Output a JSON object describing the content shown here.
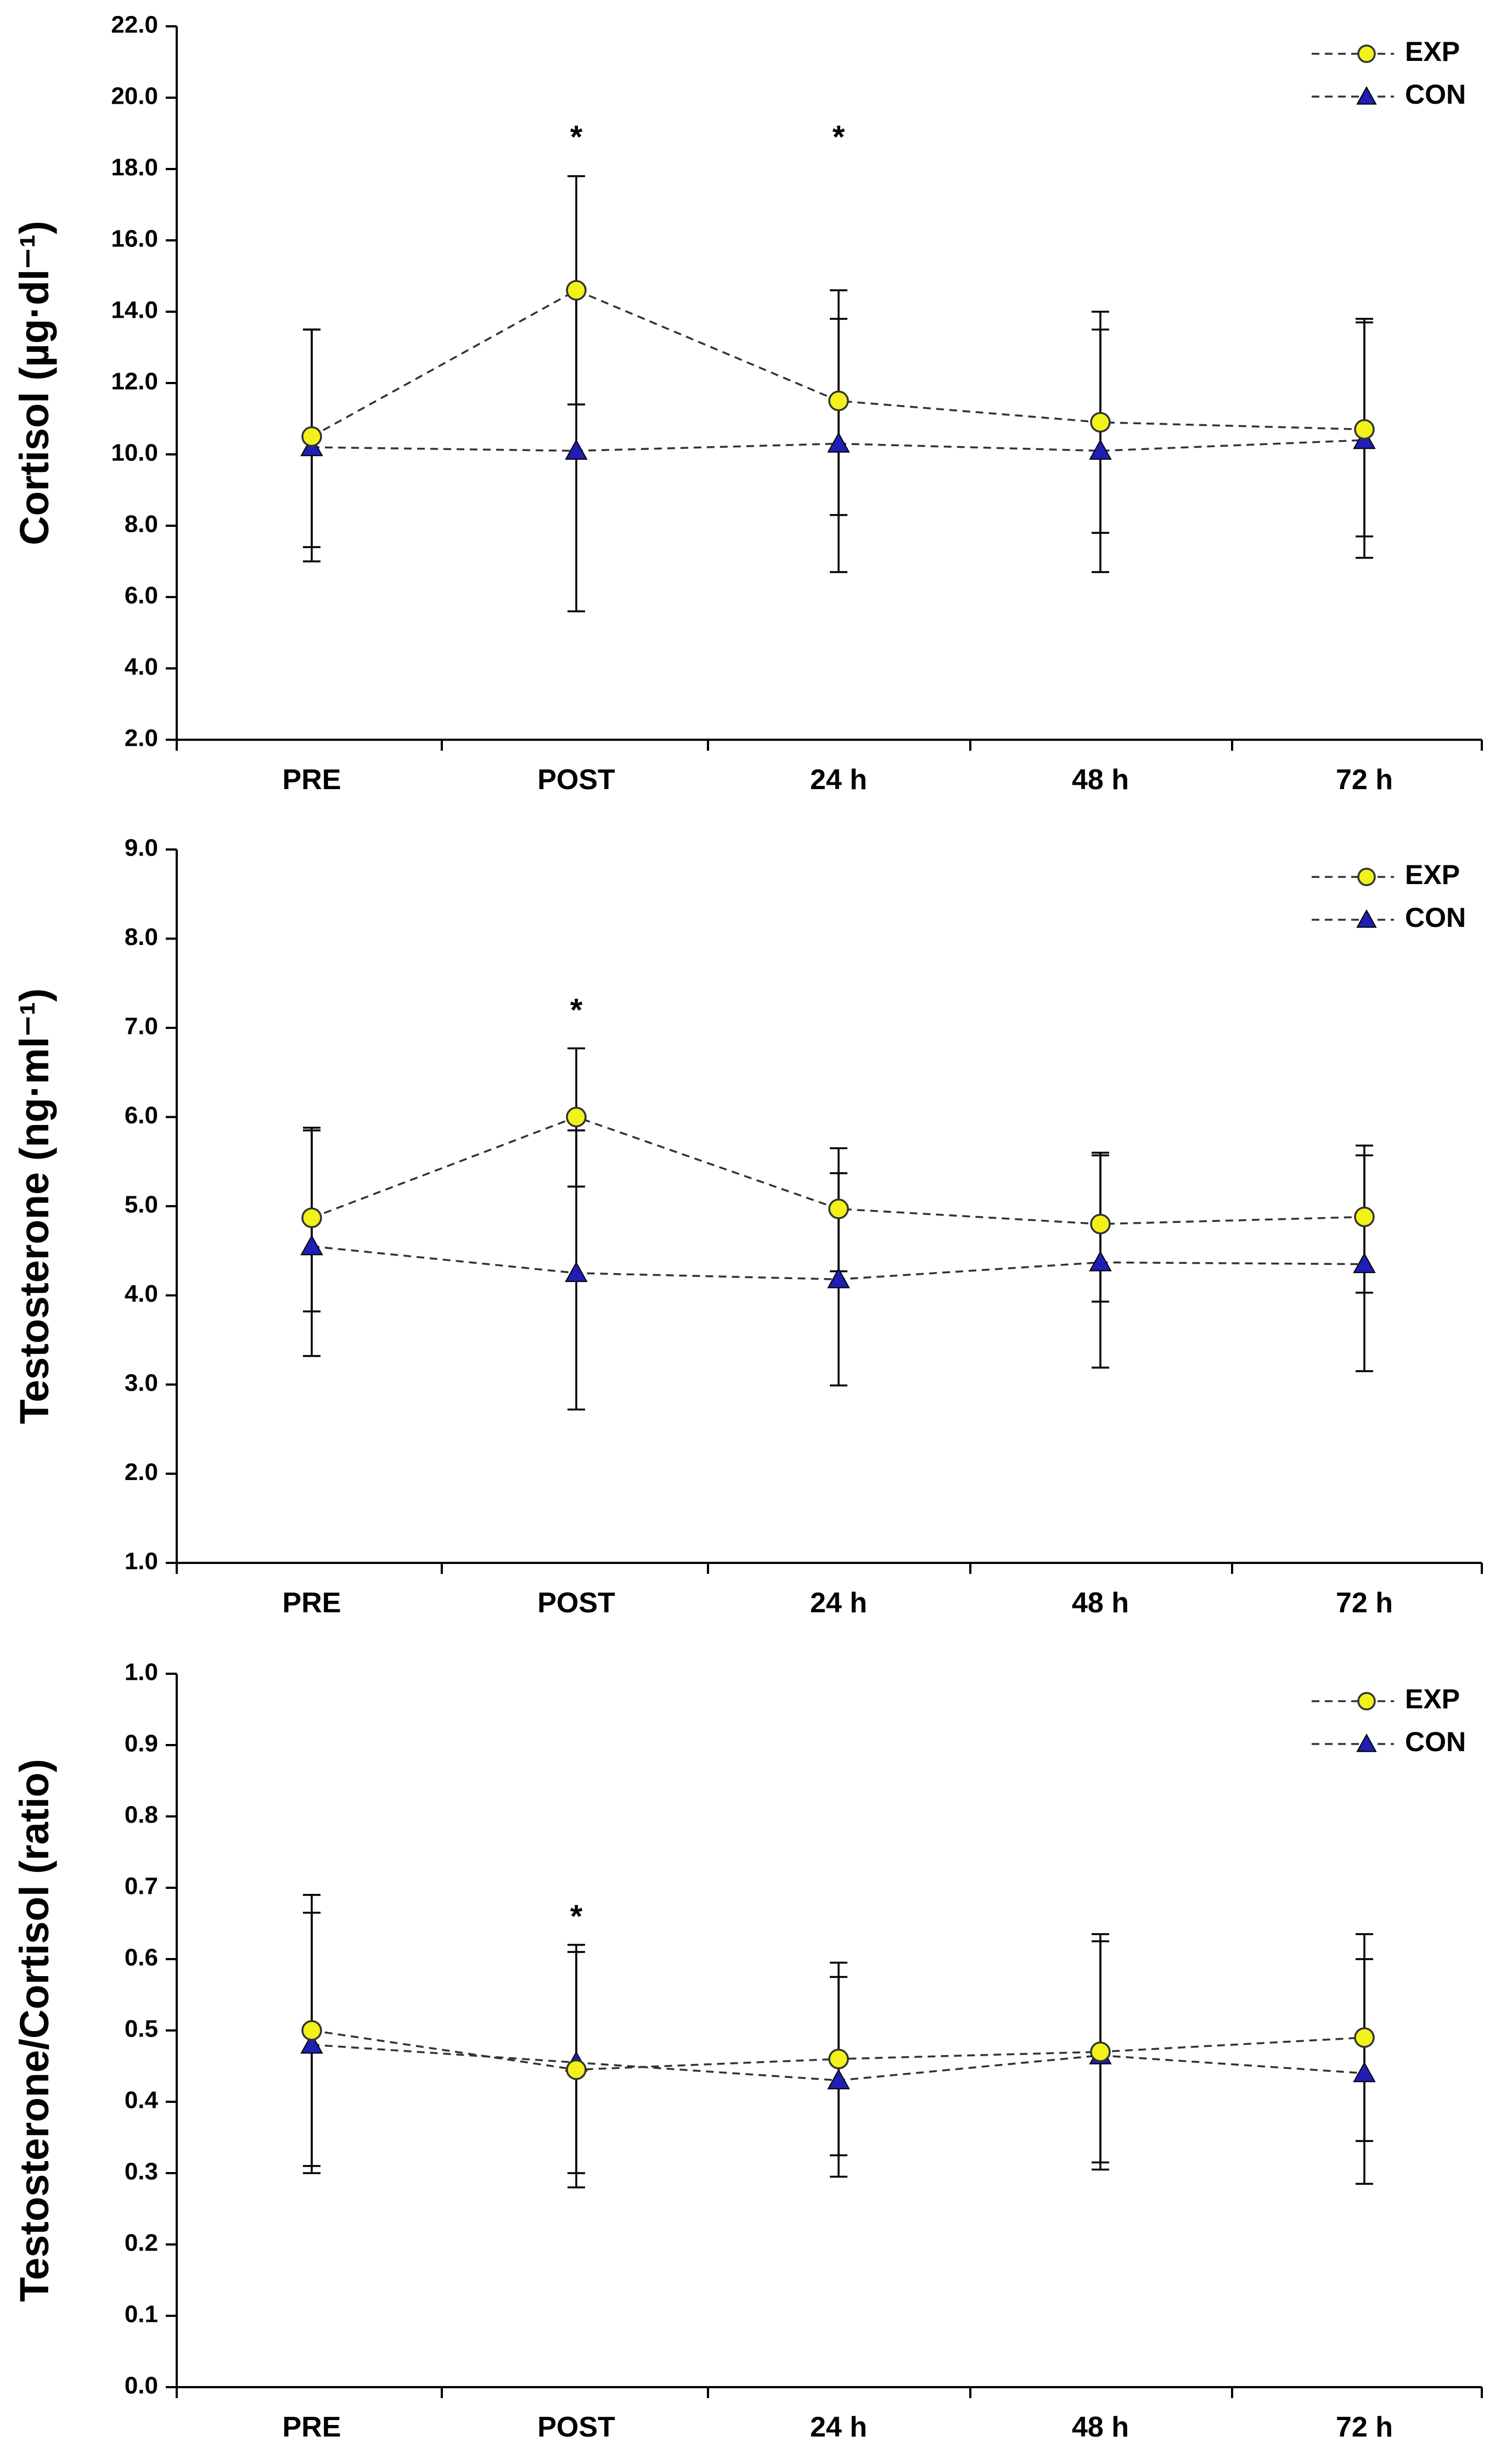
{
  "legend": [
    {
      "key": "exp",
      "label": "EXP",
      "marker": "circle",
      "color": "#f2f21a"
    },
    {
      "key": "con",
      "label": "CON",
      "marker": "triangle",
      "color": "#1f1fb3"
    }
  ],
  "chart_data": [
    {
      "type": "line",
      "categories": [
        "PRE",
        "POST",
        "24 h",
        "48 h",
        "72 h"
      ],
      "ylabel": "Cortisol (µg·dl⁻¹)",
      "ylim": [
        2.0,
        22.0
      ],
      "yticks": [
        2.0,
        4.0,
        6.0,
        8.0,
        10.0,
        12.0,
        14.0,
        16.0,
        18.0,
        20.0,
        22.0
      ],
      "ytick_labels": [
        "2.0",
        "4.0",
        "6.0",
        "8.0",
        "10.0",
        "12.0",
        "14.0",
        "16.0",
        "18.0",
        "20.0",
        "22.0"
      ],
      "legend_position": "top-right",
      "significance": [
        {
          "category": "POST",
          "label": "*",
          "value": 18.9
        },
        {
          "category": "24 h",
          "label": "*",
          "value": 18.9
        }
      ],
      "series": [
        {
          "name": "EXP",
          "values": [
            10.5,
            14.6,
            11.5,
            10.9,
            10.7
          ],
          "err_low": [
            7.4,
            11.4,
            8.3,
            7.8,
            7.7
          ],
          "err_high": [
            13.5,
            17.8,
            14.6,
            14.0,
            13.7
          ]
        },
        {
          "name": "CON",
          "values": [
            10.2,
            10.1,
            10.3,
            10.1,
            10.4
          ],
          "err_low": [
            7.0,
            5.6,
            6.7,
            6.7,
            7.1
          ],
          "err_high": [
            13.5,
            14.6,
            13.8,
            13.5,
            13.8
          ]
        }
      ]
    },
    {
      "type": "line",
      "categories": [
        "PRE",
        "POST",
        "24 h",
        "48 h",
        "72 h"
      ],
      "ylabel": "Testosterone (ng·ml⁻¹)",
      "ylim": [
        1.0,
        9.0
      ],
      "yticks": [
        1.0,
        2.0,
        3.0,
        4.0,
        5.0,
        6.0,
        7.0,
        8.0,
        9.0
      ],
      "ytick_labels": [
        "1.0",
        "2.0",
        "3.0",
        "4.0",
        "5.0",
        "6.0",
        "7.0",
        "8.0",
        "9.0"
      ],
      "legend_position": "top-right",
      "significance": [
        {
          "category": "POST",
          "label": "*",
          "value": 7.2
        }
      ],
      "series": [
        {
          "name": "EXP",
          "values": [
            4.87,
            6.0,
            4.97,
            4.8,
            4.88
          ],
          "err_low": [
            3.82,
            5.22,
            4.27,
            3.93,
            4.03
          ],
          "err_high": [
            5.88,
            6.77,
            5.65,
            5.6,
            5.68
          ]
        },
        {
          "name": "CON",
          "values": [
            4.55,
            4.25,
            4.18,
            4.37,
            4.35
          ],
          "err_low": [
            3.32,
            2.72,
            2.99,
            3.19,
            3.15
          ],
          "err_high": [
            5.85,
            5.85,
            5.37,
            5.57,
            5.57
          ]
        }
      ]
    },
    {
      "type": "line",
      "categories": [
        "PRE",
        "POST",
        "24 h",
        "48 h",
        "72 h"
      ],
      "ylabel": "Testosterone/Cortisol (ratio)",
      "ylim": [
        0.0,
        1.0
      ],
      "yticks": [
        0.0,
        0.1,
        0.2,
        0.3,
        0.4,
        0.5,
        0.6,
        0.7,
        0.8,
        0.9,
        1.0
      ],
      "ytick_labels": [
        "0.0",
        "0.1",
        "0.2",
        "0.3",
        "0.4",
        "0.5",
        "0.6",
        "0.7",
        "0.8",
        "0.9",
        "1.0"
      ],
      "legend_position": "top-right",
      "significance": [
        {
          "category": "POST",
          "label": "*",
          "value": 0.66
        }
      ],
      "series": [
        {
          "name": "EXP",
          "values": [
            0.5,
            0.445,
            0.46,
            0.47,
            0.49
          ],
          "err_low": [
            0.31,
            0.28,
            0.325,
            0.315,
            0.345
          ],
          "err_high": [
            0.69,
            0.61,
            0.595,
            0.625,
            0.635
          ]
        },
        {
          "name": "CON",
          "values": [
            0.48,
            0.455,
            0.43,
            0.465,
            0.44
          ],
          "err_low": [
            0.3,
            0.3,
            0.295,
            0.305,
            0.285
          ],
          "err_high": [
            0.665,
            0.62,
            0.575,
            0.635,
            0.6
          ]
        }
      ]
    }
  ]
}
